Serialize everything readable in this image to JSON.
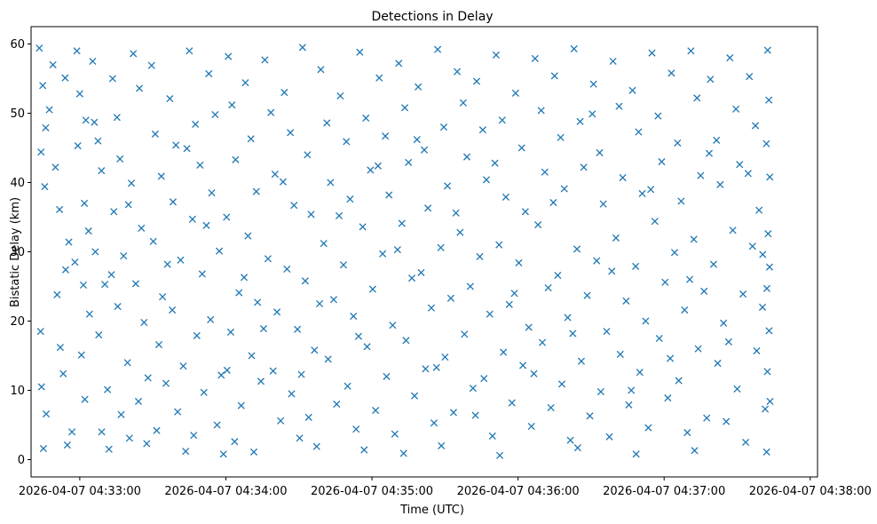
{
  "chart_data": {
    "type": "scatter",
    "title": "Detections in Delay",
    "xlabel": "Time (UTC)",
    "ylabel": "Bistatic Delay (km)",
    "grid": false,
    "marker": "x",
    "marker_color": "#1f77b4",
    "x_units": "seconds since 2026-04-07 04:33:00 UTC",
    "xlim": [
      -20,
      303
    ],
    "ylim": [
      -2.5,
      62.5
    ],
    "x_ticks": [
      {
        "value": 0,
        "label": "2026-04-07 04:33:00"
      },
      {
        "value": 60,
        "label": "2026-04-07 04:34:00"
      },
      {
        "value": 120,
        "label": "2026-04-07 04:35:00"
      },
      {
        "value": 180,
        "label": "2026-04-07 04:36:00"
      },
      {
        "value": 240,
        "label": "2026-04-07 04:37:00"
      },
      {
        "value": 300,
        "label": "2026-04-07 04:38:00"
      }
    ],
    "y_ticks": [
      {
        "value": 0,
        "label": "0"
      },
      {
        "value": 10,
        "label": "10"
      },
      {
        "value": 20,
        "label": "20"
      },
      {
        "value": 30,
        "label": "30"
      },
      {
        "value": 40,
        "label": "40"
      },
      {
        "value": 50,
        "label": "50"
      },
      {
        "value": 60,
        "label": "60"
      }
    ],
    "points": [
      [
        -16.6,
        59.4
      ],
      [
        -15.2,
        54.0
      ],
      [
        -14.0,
        47.9
      ],
      [
        -15.9,
        44.4
      ],
      [
        -14.4,
        39.4
      ],
      [
        -16.1,
        18.5
      ],
      [
        -15.7,
        10.5
      ],
      [
        -13.8,
        6.6
      ],
      [
        -14.9,
        1.6
      ],
      [
        -11.0,
        57.0
      ],
      [
        -6.0,
        55.1
      ],
      [
        -10.0,
        42.2
      ],
      [
        -8.3,
        36.1
      ],
      [
        -5.8,
        27.4
      ],
      [
        -9.3,
        23.8
      ],
      [
        -6.8,
        12.4
      ],
      [
        -3.2,
        4.0
      ],
      [
        -5.1,
        2.1
      ],
      [
        -1.2,
        59.0
      ],
      [
        0.0,
        52.8
      ],
      [
        2.5,
        49.0
      ],
      [
        -0.8,
        45.3
      ],
      [
        1.9,
        37.0
      ],
      [
        3.6,
        33.0
      ],
      [
        -2.0,
        28.5
      ],
      [
        4.0,
        21.0
      ],
      [
        0.7,
        15.1
      ],
      [
        2.1,
        8.7
      ],
      [
        5.3,
        57.5
      ],
      [
        7.5,
        46.0
      ],
      [
        8.9,
        41.7
      ],
      [
        6.4,
        30.0
      ],
      [
        10.3,
        25.3
      ],
      [
        7.8,
        18.0
      ],
      [
        11.4,
        10.1
      ],
      [
        9.0,
        4.0
      ],
      [
        12.0,
        1.5
      ],
      [
        13.5,
        55.0
      ],
      [
        15.3,
        49.4
      ],
      [
        16.5,
        43.4
      ],
      [
        14.0,
        35.8
      ],
      [
        18.0,
        29.4
      ],
      [
        15.6,
        22.1
      ],
      [
        19.6,
        14.0
      ],
      [
        17.0,
        6.5
      ],
      [
        20.4,
        3.1
      ],
      [
        22.0,
        58.6
      ],
      [
        24.5,
        53.6
      ],
      [
        21.2,
        39.9
      ],
      [
        25.3,
        33.4
      ],
      [
        23.0,
        25.4
      ],
      [
        26.4,
        19.8
      ],
      [
        24.1,
        8.4
      ],
      [
        27.5,
        2.3
      ],
      [
        29.5,
        56.9
      ],
      [
        31.0,
        47.0
      ],
      [
        33.5,
        40.9
      ],
      [
        30.2,
        31.5
      ],
      [
        34.0,
        23.5
      ],
      [
        32.5,
        16.6
      ],
      [
        35.4,
        11.0
      ],
      [
        31.6,
        4.2
      ],
      [
        37.0,
        52.1
      ],
      [
        39.5,
        45.4
      ],
      [
        38.3,
        37.2
      ],
      [
        41.4,
        28.8
      ],
      [
        38.0,
        21.6
      ],
      [
        42.5,
        13.5
      ],
      [
        40.2,
        6.9
      ],
      [
        43.5,
        1.2
      ],
      [
        45.0,
        59.0
      ],
      [
        47.5,
        48.4
      ],
      [
        49.4,
        42.5
      ],
      [
        46.3,
        34.7
      ],
      [
        50.3,
        26.8
      ],
      [
        48.1,
        17.9
      ],
      [
        51.0,
        9.7
      ],
      [
        46.8,
        3.5
      ],
      [
        53.0,
        55.7
      ],
      [
        55.6,
        49.8
      ],
      [
        54.2,
        38.5
      ],
      [
        57.3,
        30.1
      ],
      [
        53.7,
        20.2
      ],
      [
        58.1,
        12.2
      ],
      [
        56.4,
        5.0
      ],
      [
        59.0,
        0.8
      ],
      [
        61.0,
        58.2
      ],
      [
        62.5,
        51.2
      ],
      [
        64.0,
        43.3
      ],
      [
        60.3,
        35.0
      ],
      [
        65.4,
        24.1
      ],
      [
        62.0,
        18.4
      ],
      [
        66.3,
        7.8
      ],
      [
        63.6,
        2.6
      ],
      [
        68.0,
        54.4
      ],
      [
        70.3,
        46.3
      ],
      [
        72.5,
        38.7
      ],
      [
        69.1,
        32.3
      ],
      [
        73.0,
        22.7
      ],
      [
        70.6,
        15.0
      ],
      [
        74.4,
        11.3
      ],
      [
        71.5,
        1.1
      ],
      [
        76.0,
        57.7
      ],
      [
        78.5,
        50.1
      ],
      [
        80.2,
        41.2
      ],
      [
        77.3,
        29.0
      ],
      [
        81.0,
        21.3
      ],
      [
        79.4,
        12.8
      ],
      [
        82.5,
        5.6
      ],
      [
        84.0,
        53.0
      ],
      [
        86.5,
        47.2
      ],
      [
        88.0,
        36.7
      ],
      [
        85.1,
        27.5
      ],
      [
        89.4,
        18.8
      ],
      [
        87.0,
        9.5
      ],
      [
        90.3,
        3.1
      ],
      [
        91.5,
        59.5
      ],
      [
        93.5,
        44.0
      ],
      [
        95.0,
        35.4
      ],
      [
        92.6,
        25.8
      ],
      [
        96.4,
        15.8
      ],
      [
        94.0,
        6.1
      ],
      [
        97.3,
        1.9
      ],
      [
        99.0,
        56.3
      ],
      [
        101.5,
        48.6
      ],
      [
        103.0,
        40.0
      ],
      [
        100.2,
        31.2
      ],
      [
        104.3,
        23.1
      ],
      [
        102.0,
        14.5
      ],
      [
        105.5,
        8.0
      ],
      [
        107.0,
        52.5
      ],
      [
        109.5,
        45.9
      ],
      [
        111.0,
        37.6
      ],
      [
        108.3,
        28.1
      ],
      [
        112.4,
        20.7
      ],
      [
        110.0,
        10.6
      ],
      [
        113.5,
        4.4
      ],
      [
        115.0,
        58.8
      ],
      [
        117.5,
        49.3
      ],
      [
        119.4,
        41.8
      ],
      [
        116.2,
        33.6
      ],
      [
        120.3,
        24.6
      ],
      [
        118.0,
        16.3
      ],
      [
        121.5,
        7.1
      ],
      [
        116.8,
        1.4
      ],
      [
        123.0,
        55.1
      ],
      [
        125.5,
        46.7
      ],
      [
        127.0,
        38.2
      ],
      [
        124.4,
        29.7
      ],
      [
        128.5,
        19.4
      ],
      [
        126.0,
        12.0
      ],
      [
        129.4,
        3.7
      ],
      [
        131.0,
        57.2
      ],
      [
        133.5,
        50.8
      ],
      [
        135.0,
        42.9
      ],
      [
        132.3,
        34.1
      ],
      [
        136.4,
        26.2
      ],
      [
        134.0,
        17.2
      ],
      [
        137.5,
        9.2
      ],
      [
        133.0,
        0.9
      ],
      [
        139.0,
        53.8
      ],
      [
        141.5,
        44.7
      ],
      [
        143.0,
        36.3
      ],
      [
        140.2,
        27.0
      ],
      [
        144.4,
        21.9
      ],
      [
        142.0,
        13.1
      ],
      [
        145.5,
        5.3
      ],
      [
        147.0,
        59.2
      ],
      [
        149.5,
        48.0
      ],
      [
        151.0,
        39.5
      ],
      [
        148.3,
        30.6
      ],
      [
        152.4,
        23.3
      ],
      [
        150.0,
        14.8
      ],
      [
        153.5,
        6.8
      ],
      [
        148.5,
        2.0
      ],
      [
        155.0,
        56.0
      ],
      [
        157.5,
        51.5
      ],
      [
        159.0,
        43.7
      ],
      [
        156.2,
        32.8
      ],
      [
        160.4,
        25.0
      ],
      [
        158.0,
        18.1
      ],
      [
        161.5,
        10.3
      ],
      [
        163.0,
        54.6
      ],
      [
        165.5,
        47.6
      ],
      [
        167.0,
        40.4
      ],
      [
        164.3,
        29.3
      ],
      [
        168.4,
        21.0
      ],
      [
        166.0,
        11.7
      ],
      [
        169.5,
        3.4
      ],
      [
        171.0,
        58.4
      ],
      [
        173.5,
        49.0
      ],
      [
        175.0,
        37.9
      ],
      [
        172.2,
        31.0
      ],
      [
        176.4,
        22.4
      ],
      [
        174.0,
        15.5
      ],
      [
        177.5,
        8.2
      ],
      [
        172.5,
        0.6
      ],
      [
        179.0,
        52.9
      ],
      [
        181.5,
        45.0
      ],
      [
        183.0,
        35.8
      ],
      [
        180.3,
        28.4
      ],
      [
        184.4,
        19.1
      ],
      [
        182.0,
        13.6
      ],
      [
        185.5,
        4.8
      ],
      [
        187.0,
        57.9
      ],
      [
        189.5,
        50.4
      ],
      [
        191.0,
        41.5
      ],
      [
        188.2,
        33.9
      ],
      [
        192.4,
        24.8
      ],
      [
        190.0,
        16.9
      ],
      [
        193.5,
        7.5
      ],
      [
        195.0,
        55.4
      ],
      [
        197.5,
        46.5
      ],
      [
        199.0,
        39.1
      ],
      [
        196.3,
        26.6
      ],
      [
        200.4,
        20.5
      ],
      [
        198.0,
        10.9
      ],
      [
        201.5,
        2.8
      ],
      [
        203.0,
        59.3
      ],
      [
        205.5,
        48.8
      ],
      [
        207.0,
        42.2
      ],
      [
        204.2,
        30.4
      ],
      [
        208.4,
        23.7
      ],
      [
        206.0,
        14.2
      ],
      [
        209.5,
        6.3
      ],
      [
        204.5,
        1.7
      ],
      [
        211.0,
        54.2
      ],
      [
        213.5,
        44.3
      ],
      [
        215.0,
        36.9
      ],
      [
        212.3,
        28.7
      ],
      [
        216.4,
        18.5
      ],
      [
        214.0,
        9.8
      ],
      [
        217.5,
        3.3
      ],
      [
        219.0,
        57.5
      ],
      [
        221.5,
        51.0
      ],
      [
        223.0,
        40.7
      ],
      [
        220.2,
        32.0
      ],
      [
        224.4,
        22.9
      ],
      [
        222.0,
        15.2
      ],
      [
        225.5,
        7.9
      ],
      [
        227.0,
        53.3
      ],
      [
        229.5,
        47.3
      ],
      [
        231.0,
        38.4
      ],
      [
        228.3,
        27.9
      ],
      [
        232.4,
        20.0
      ],
      [
        230.0,
        12.6
      ],
      [
        233.5,
        4.6
      ],
      [
        228.5,
        0.8
      ],
      [
        235.0,
        58.7
      ],
      [
        237.5,
        49.6
      ],
      [
        239.0,
        43.0
      ],
      [
        236.2,
        34.4
      ],
      [
        240.4,
        25.6
      ],
      [
        238.0,
        17.5
      ],
      [
        241.5,
        8.9
      ],
      [
        243.0,
        55.8
      ],
      [
        245.5,
        45.7
      ],
      [
        247.0,
        37.3
      ],
      [
        244.3,
        29.9
      ],
      [
        248.4,
        21.6
      ],
      [
        246.0,
        11.4
      ],
      [
        249.5,
        3.9
      ],
      [
        251.0,
        59.0
      ],
      [
        253.5,
        52.2
      ],
      [
        255.0,
        41.0
      ],
      [
        252.2,
        31.8
      ],
      [
        256.4,
        24.3
      ],
      [
        254.0,
        16.0
      ],
      [
        257.5,
        6.0
      ],
      [
        252.5,
        1.3
      ],
      [
        259.0,
        54.9
      ],
      [
        261.5,
        46.1
      ],
      [
        263.0,
        39.7
      ],
      [
        260.3,
        28.2
      ],
      [
        264.4,
        19.7
      ],
      [
        262.0,
        13.9
      ],
      [
        265.5,
        5.5
      ],
      [
        267.0,
        58.0
      ],
      [
        269.5,
        50.6
      ],
      [
        271.0,
        42.6
      ],
      [
        268.2,
        33.1
      ],
      [
        272.4,
        23.9
      ],
      [
        270.0,
        10.2
      ],
      [
        273.5,
        2.5
      ],
      [
        275.0,
        55.3
      ],
      [
        277.5,
        48.2
      ],
      [
        279.0,
        36.0
      ],
      [
        276.3,
        30.8
      ],
      [
        280.4,
        22.0
      ],
      [
        278.0,
        15.7
      ],
      [
        281.5,
        7.3
      ],
      [
        282.5,
        59.1
      ],
      [
        283.0,
        51.9
      ],
      [
        282.0,
        45.6
      ],
      [
        283.4,
        40.8
      ],
      [
        282.7,
        32.6
      ],
      [
        283.3,
        27.8
      ],
      [
        282.2,
        24.7
      ],
      [
        283.1,
        18.6
      ],
      [
        282.4,
        12.7
      ],
      [
        283.5,
        8.4
      ],
      [
        282.1,
        1.1
      ],
      [
        -12.5,
        50.5
      ],
      [
        -4.5,
        31.4
      ],
      [
        6.0,
        48.7
      ],
      [
        13.0,
        26.7
      ],
      [
        20.0,
        36.8
      ],
      [
        28.0,
        11.8
      ],
      [
        36.0,
        28.2
      ],
      [
        44.0,
        44.9
      ],
      [
        52.0,
        33.8
      ],
      [
        60.5,
        12.9
      ],
      [
        67.5,
        26.3
      ],
      [
        75.5,
        18.9
      ],
      [
        83.5,
        40.1
      ],
      [
        91.0,
        12.3
      ],
      [
        98.5,
        22.5
      ],
      [
        106.5,
        35.2
      ],
      [
        114.5,
        17.8
      ],
      [
        122.5,
        42.4
      ],
      [
        130.5,
        30.3
      ],
      [
        138.5,
        46.2
      ],
      [
        146.5,
        13.3
      ],
      [
        154.5,
        35.6
      ],
      [
        162.5,
        6.4
      ],
      [
        170.5,
        42.8
      ],
      [
        178.5,
        24.0
      ],
      [
        186.5,
        12.4
      ],
      [
        194.5,
        37.1
      ],
      [
        202.5,
        18.2
      ],
      [
        210.5,
        49.9
      ],
      [
        218.5,
        27.2
      ],
      [
        226.5,
        10.0
      ],
      [
        234.5,
        39.0
      ],
      [
        242.5,
        14.6
      ],
      [
        250.5,
        26.0
      ],
      [
        258.5,
        44.2
      ],
      [
        266.5,
        17.0
      ],
      [
        274.5,
        41.3
      ],
      [
        280.5,
        29.6
      ],
      [
        -8.0,
        16.2
      ],
      [
        1.5,
        25.2
      ]
    ]
  }
}
